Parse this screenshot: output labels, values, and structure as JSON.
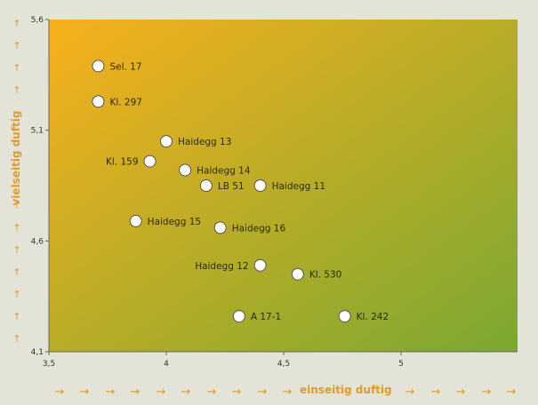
{
  "chart_data": {
    "type": "scatter",
    "title": "",
    "xlabel": "einseitig   duftig",
    "ylabel": "vielseitig duftig",
    "xlim": [
      3.5,
      6.0
    ],
    "ylim": [
      4.1,
      5.6
    ],
    "xticks": [
      "3,5",
      "4",
      "4,5",
      "5"
    ],
    "xtick_values": [
      3.5,
      4.0,
      4.5,
      5.0
    ],
    "yticks": [
      "4,1",
      "4,6",
      "5,1",
      "5,6"
    ],
    "ytick_values": [
      4.1,
      4.6,
      5.1,
      5.6
    ],
    "grid": false,
    "gradient_colors": [
      "#f8b01c",
      "#7aa831"
    ],
    "marker_fill": "#ffffff",
    "marker_stroke": "#555555",
    "points": [
      {
        "label": "Sel. 17",
        "x": 3.71,
        "y": 5.39,
        "label_side": "right"
      },
      {
        "label": "Kl. 297",
        "x": 3.71,
        "y": 5.23,
        "label_side": "right"
      },
      {
        "label": "Haidegg 13",
        "x": 4.0,
        "y": 5.05,
        "label_side": "right"
      },
      {
        "label": "Kl. 159",
        "x": 3.93,
        "y": 4.96,
        "label_side": "left"
      },
      {
        "label": "Haidegg 14",
        "x": 4.08,
        "y": 4.92,
        "label_side": "right"
      },
      {
        "label": "LB 51",
        "x": 4.17,
        "y": 4.85,
        "label_side": "right"
      },
      {
        "label": "Haidegg 11",
        "x": 4.4,
        "y": 4.85,
        "label_side": "right"
      },
      {
        "label": "Haidegg 15",
        "x": 3.87,
        "y": 4.69,
        "label_side": "right"
      },
      {
        "label": "Haidegg 16",
        "x": 4.23,
        "y": 4.66,
        "label_side": "right"
      },
      {
        "label": "Haidegg 12",
        "x": 4.4,
        "y": 4.49,
        "label_side": "left"
      },
      {
        "label": "Kl. 530",
        "x": 4.56,
        "y": 4.45,
        "label_side": "right"
      },
      {
        "label": "A 17-1",
        "x": 4.31,
        "y": 4.26,
        "label_side": "right"
      },
      {
        "label": "Kl. 242",
        "x": 4.76,
        "y": 4.26,
        "label_side": "right"
      }
    ]
  }
}
